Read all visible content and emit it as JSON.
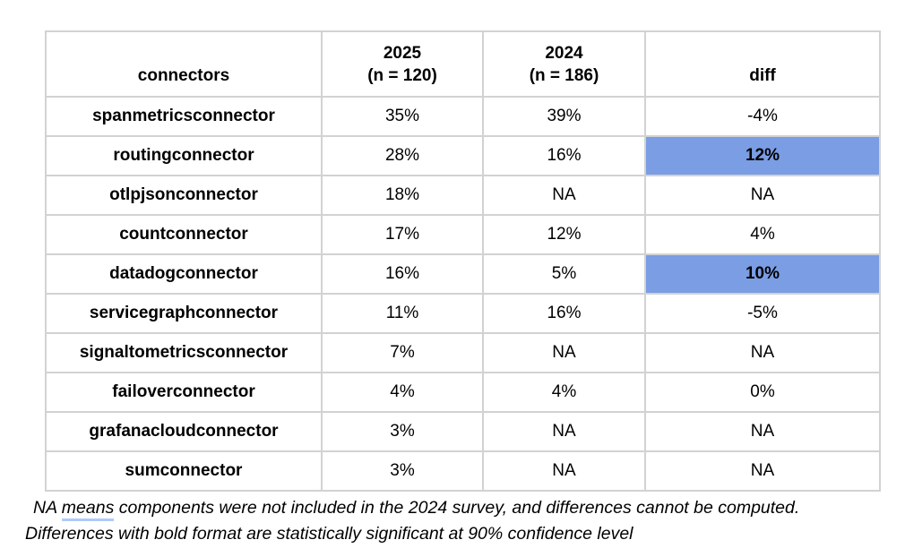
{
  "chart_data": {
    "type": "table",
    "title": "",
    "columns": [
      "connectors",
      "2025\n(n = 120)",
      "2024\n(n = 186)",
      "diff"
    ],
    "rows": [
      {
        "connector": "spanmetricsconnector",
        "pct_2025": "35%",
        "pct_2024": "39%",
        "diff": "-4%",
        "diff_highlighted": false
      },
      {
        "connector": "routingconnector",
        "pct_2025": "28%",
        "pct_2024": "16%",
        "diff": "12%",
        "diff_highlighted": true
      },
      {
        "connector": "otlpjsonconnector",
        "pct_2025": "18%",
        "pct_2024": "NA",
        "diff": "NA",
        "diff_highlighted": false
      },
      {
        "connector": "countconnector",
        "pct_2025": "17%",
        "pct_2024": "12%",
        "diff": "4%",
        "diff_highlighted": false
      },
      {
        "connector": "datadogconnector",
        "pct_2025": "16%",
        "pct_2024": "5%",
        "diff": "10%",
        "diff_highlighted": true
      },
      {
        "connector": "servicegraphconnector",
        "pct_2025": "11%",
        "pct_2024": "16%",
        "diff": "-5%",
        "diff_highlighted": false
      },
      {
        "connector": "signaltometricsconnector",
        "pct_2025": "7%",
        "pct_2024": "NA",
        "diff": "NA",
        "diff_highlighted": false
      },
      {
        "connector": "failoverconnector",
        "pct_2025": "4%",
        "pct_2024": "4%",
        "diff": "0%",
        "diff_highlighted": false
      },
      {
        "connector": "grafanacloudconnector",
        "pct_2025": "3%",
        "pct_2024": "NA",
        "diff": "NA",
        "diff_highlighted": false
      },
      {
        "connector": "sumconnector",
        "pct_2025": "3%",
        "pct_2024": "NA",
        "diff": "NA",
        "diff_highlighted": false
      }
    ],
    "highlight_meaning": "bold value on blue background = statistically significant difference",
    "notes": [
      "NA means components were not included in the 2024 survey, and differences cannot be computed.",
      "Differences with bold format are statistically significant at 90% confidence level"
    ]
  },
  "footnote": {
    "line1_prefix": "NA ",
    "line1_underlined": "means",
    "line1_suffix": " components were not included in the 2024 survey, and differences cannot be computed.",
    "line2": "Differences with bold format are statistically significant at 90% confidence level"
  },
  "colors": {
    "highlight_blue": "#7a9de4",
    "border_gray": "#d2d2d2",
    "underline_blue": "#aecbfa",
    "text": "#000000",
    "background": "#ffffff"
  }
}
